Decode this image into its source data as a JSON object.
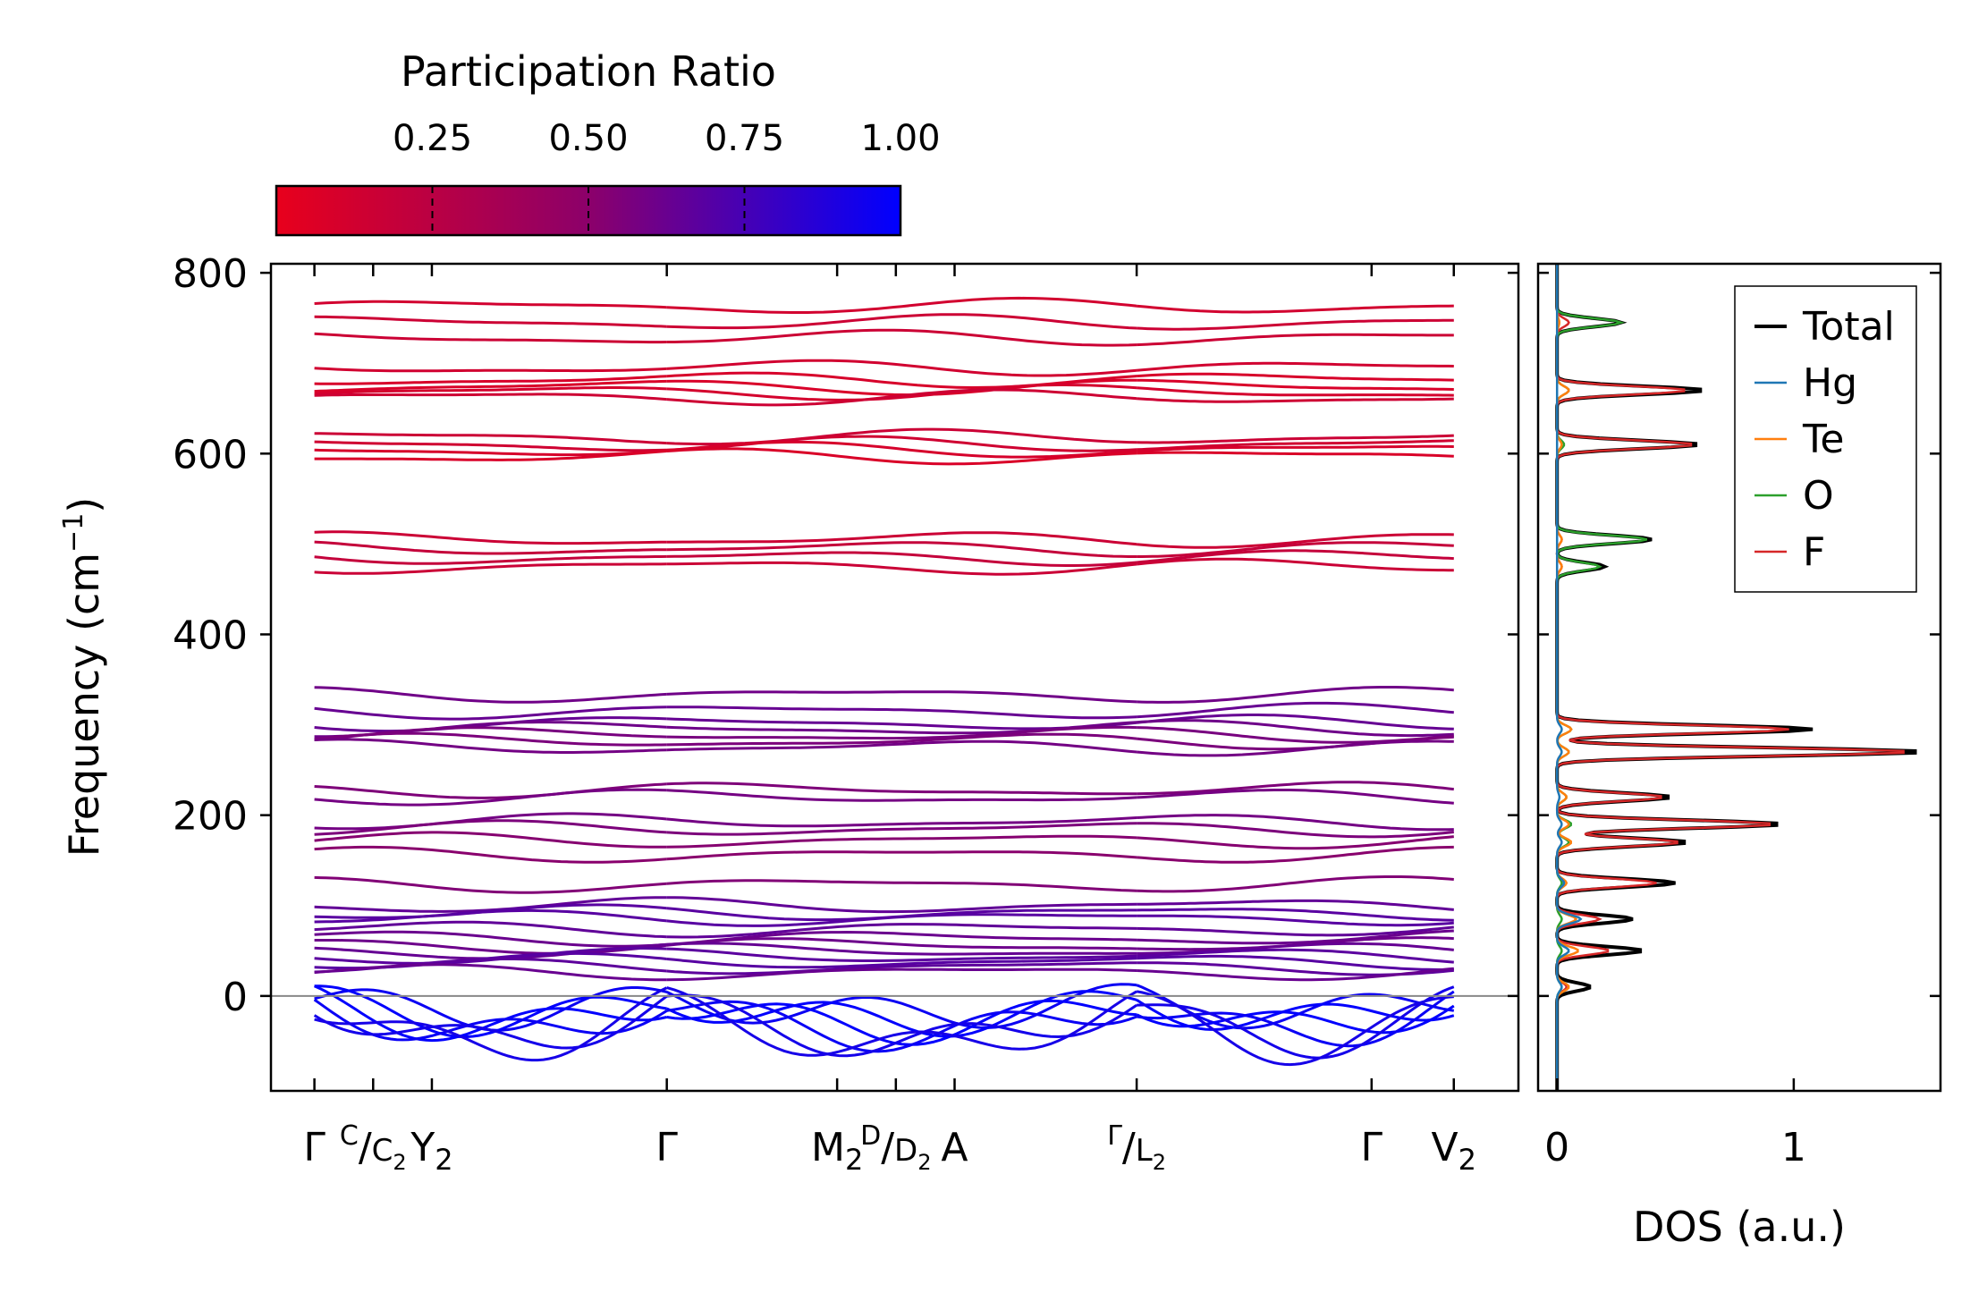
{
  "chart_data": [
    {
      "type": "line",
      "name": "phonon-band-structure",
      "ylabel": "Frequency (cm",
      "ylabel_sup": "−1",
      "ylabel_end": ")",
      "ylim": [
        -105,
        810
      ],
      "yticks": [
        "0",
        "200",
        "400",
        "600",
        "800"
      ],
      "ytick_values": [
        0,
        200,
        400,
        600,
        800
      ],
      "segments": [
        {
          "from": 0.0,
          "to": 3.0
        },
        {
          "from": 3.0,
          "to": 7.0
        },
        {
          "from": 7.0,
          "to": 9.7
        }
      ],
      "high_symmetry_points": [
        {
          "pos": 0.0,
          "label": "Γ"
        },
        {
          "pos": 0.5,
          "label": "C",
          "label2": "C",
          "sub2": "2",
          "split": true
        },
        {
          "pos": 1.0,
          "label": "Y",
          "sub": "2"
        },
        {
          "pos": 3.0,
          "label": "Γ"
        },
        {
          "pos": 4.45,
          "label": "M",
          "sub": "2"
        },
        {
          "pos": 4.95,
          "label": "D",
          "label2": "D",
          "sub2": "2",
          "split": true
        },
        {
          "pos": 5.45,
          "label": "A"
        },
        {
          "pos": 7.0,
          "label": "Γ",
          "label2": "L",
          "sub2": "2",
          "split": true
        },
        {
          "pos": 9.0,
          "label": "Γ"
        },
        {
          "pos": 9.7,
          "label": "V",
          "sub": "2"
        }
      ],
      "colorbar": {
        "label": "Participation Ratio",
        "range": [
          0.0,
          1.0
        ],
        "ticks": [
          "0.25",
          "0.50",
          "0.75",
          "1.00"
        ],
        "tick_values": [
          0.25,
          0.5,
          0.75,
          1.0
        ],
        "color_low": "#e8001c",
        "color_mid": "#8c006a",
        "color_high": "#0000ff"
      },
      "band_groups": [
        {
          "name": "high-frequency-o-f-bands",
          "freqs": [
            763,
            745,
            728,
            695,
            682,
            674,
            668,
            662,
            618,
            610,
            604,
            597
          ],
          "pr": 0.12
        },
        {
          "name": "te-o-bands",
          "freqs": [
            505,
            495,
            485,
            475
          ],
          "pr": 0.16
        },
        {
          "name": "mid-bands",
          "freqs": [
            333,
            315,
            302,
            296,
            289,
            282,
            275
          ],
          "pr": 0.6
        },
        {
          "name": "low-mid-bands",
          "freqs": [
            228,
            220,
            193,
            185,
            172,
            156,
            123
          ],
          "pr": 0.55
        },
        {
          "name": "acoustic-region-bands",
          "freqs": [
            100,
            92,
            86,
            74,
            64,
            56,
            50,
            44,
            38,
            32,
            26
          ],
          "pr": 0.65
        },
        {
          "name": "soft-modes",
          "freqs": [
            -20,
            -28,
            -36,
            -44,
            -52,
            -58
          ],
          "pr": 0.96
        }
      ]
    },
    {
      "type": "line",
      "name": "density-of-states",
      "xlabel": "DOS (a.u.)",
      "xticks": [
        "0",
        "1"
      ],
      "xtick_values": [
        0,
        1
      ],
      "xlim": [
        -0.08,
        1.62
      ],
      "ylim": [
        -105,
        810
      ],
      "series": [
        {
          "name": "Total",
          "color": "#000000"
        },
        {
          "name": "Hg",
          "color": "#1f77b4"
        },
        {
          "name": "Te",
          "color": "#ff7f0e"
        },
        {
          "name": "O",
          "color": "#2ca02c"
        },
        {
          "name": "F",
          "color": "#d62728"
        }
      ],
      "peaks": [
        {
          "freq": 745,
          "Total": 0.27,
          "Hg": 0.0,
          "Te": 0.01,
          "O": 0.27,
          "F": 0.05
        },
        {
          "freq": 670,
          "Total": 0.62,
          "Hg": 0.0,
          "Te": 0.05,
          "O": 0.05,
          "F": 0.55
        },
        {
          "freq": 610,
          "Total": 0.6,
          "Hg": 0.0,
          "Te": 0.02,
          "O": 0.03,
          "F": 0.58
        },
        {
          "freq": 505,
          "Total": 0.4,
          "Hg": 0.0,
          "Te": 0.02,
          "O": 0.38,
          "F": 0.02
        },
        {
          "freq": 475,
          "Total": 0.2,
          "Hg": 0.0,
          "Te": 0.02,
          "O": 0.18,
          "F": 0.02
        },
        {
          "freq": 295,
          "Total": 1.08,
          "Hg": 0.02,
          "Te": 0.06,
          "O": 0.06,
          "F": 0.98
        },
        {
          "freq": 270,
          "Total": 1.55,
          "Hg": 0.02,
          "Te": 0.05,
          "O": 0.05,
          "F": 1.5
        },
        {
          "freq": 220,
          "Total": 0.48,
          "Hg": 0.01,
          "Te": 0.04,
          "O": 0.04,
          "F": 0.45
        },
        {
          "freq": 190,
          "Total": 0.95,
          "Hg": 0.02,
          "Te": 0.05,
          "O": 0.06,
          "F": 0.92
        },
        {
          "freq": 170,
          "Total": 0.55,
          "Hg": 0.02,
          "Te": 0.06,
          "O": 0.05,
          "F": 0.52
        },
        {
          "freq": 125,
          "Total": 0.5,
          "Hg": 0.03,
          "Te": 0.04,
          "O": 0.02,
          "F": 0.42
        },
        {
          "freq": 85,
          "Total": 0.32,
          "Hg": 0.1,
          "Te": 0.08,
          "O": 0.02,
          "F": 0.18
        },
        {
          "freq": 50,
          "Total": 0.36,
          "Hg": 0.05,
          "Te": 0.09,
          "O": 0.02,
          "F": 0.22
        },
        {
          "freq": 10,
          "Total": 0.14,
          "Hg": 0.02,
          "Te": 0.05,
          "O": 0.02,
          "F": 0.04
        }
      ]
    }
  ]
}
